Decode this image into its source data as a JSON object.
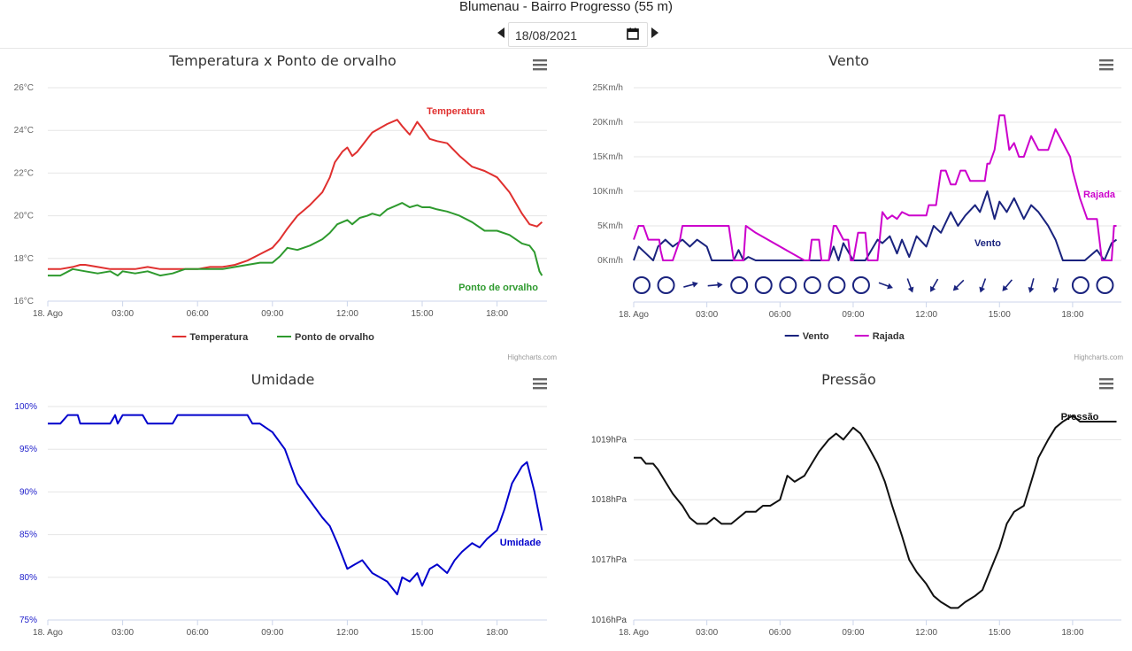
{
  "page": {
    "title": "Blumenau - Bairro Progresso (55 m)",
    "date": "18/08/2021",
    "credits": "Highcharts.com"
  },
  "chart_data": [
    {
      "id": "temperatura",
      "type": "line",
      "title": "Temperatura x Ponto de orvalho",
      "x_tick_labels": [
        "18. Ago",
        "03:00",
        "06:00",
        "09:00",
        "12:00",
        "15:00",
        "18:00"
      ],
      "x_range_hours": [
        0,
        20
      ],
      "y_tick_labels": [
        "16°C",
        "18°C",
        "20°C",
        "22°C",
        "24°C",
        "26°C"
      ],
      "ylim": [
        16,
        26
      ],
      "legend": "bottom-center",
      "series": [
        {
          "name": "Temperatura",
          "color": "#e0302f",
          "x": [
            0,
            0.5,
            1,
            1.3,
            1.5,
            2,
            2.5,
            3,
            3.5,
            4,
            4.5,
            5,
            5.5,
            6,
            6.5,
            7,
            7.5,
            8,
            8.5,
            9,
            9.3,
            9.6,
            10,
            10.5,
            11,
            11.3,
            11.5,
            11.8,
            12,
            12.2,
            12.4,
            12.6,
            12.8,
            13,
            13.3,
            13.6,
            14,
            14.2,
            14.5,
            14.8,
            15,
            15.3,
            15.6,
            16,
            16.5,
            17,
            17.5,
            18,
            18.5,
            19,
            19.3,
            19.6,
            19.8
          ],
          "y": [
            17.5,
            17.5,
            17.6,
            17.7,
            17.7,
            17.6,
            17.5,
            17.5,
            17.5,
            17.6,
            17.5,
            17.5,
            17.5,
            17.5,
            17.6,
            17.6,
            17.7,
            17.9,
            18.2,
            18.5,
            18.9,
            19.4,
            20,
            20.5,
            21.1,
            21.8,
            22.5,
            23,
            23.2,
            22.8,
            23,
            23.3,
            23.6,
            23.9,
            24.1,
            24.3,
            24.5,
            24.2,
            23.8,
            24.4,
            24.1,
            23.6,
            23.5,
            23.4,
            22.8,
            22.3,
            22.1,
            21.8,
            21.1,
            20.1,
            19.6,
            19.5,
            19.7
          ],
          "end_label": "Temperatura"
        },
        {
          "name": "Ponto de orvalho",
          "color": "#2e9a2e",
          "x": [
            0,
            0.5,
            1,
            1.5,
            2,
            2.5,
            2.8,
            3,
            3.5,
            4,
            4.5,
            5,
            5.5,
            6,
            6.5,
            7,
            7.5,
            8,
            8.5,
            9,
            9.3,
            9.6,
            10,
            10.5,
            11,
            11.3,
            11.6,
            12,
            12.2,
            12.5,
            12.8,
            13,
            13.3,
            13.6,
            14,
            14.2,
            14.5,
            14.8,
            15,
            15.3,
            15.6,
            16,
            16.5,
            17,
            17.5,
            18,
            18.5,
            19,
            19.3,
            19.5,
            19.7,
            19.8
          ],
          "y": [
            17.2,
            17.2,
            17.5,
            17.4,
            17.3,
            17.4,
            17.2,
            17.4,
            17.3,
            17.4,
            17.2,
            17.3,
            17.5,
            17.5,
            17.5,
            17.5,
            17.6,
            17.7,
            17.8,
            17.8,
            18.1,
            18.5,
            18.4,
            18.6,
            18.9,
            19.2,
            19.6,
            19.8,
            19.6,
            19.9,
            20,
            20.1,
            20,
            20.3,
            20.5,
            20.6,
            20.4,
            20.5,
            20.4,
            20.4,
            20.3,
            20.2,
            20,
            19.7,
            19.3,
            19.3,
            19.1,
            18.7,
            18.6,
            18.3,
            17.4,
            17.2
          ],
          "end_label": "Ponto de orvalho"
        }
      ]
    },
    {
      "id": "vento",
      "type": "line",
      "title": "Vento",
      "x_tick_labels": [
        "18. Ago",
        "03:00",
        "06:00",
        "09:00",
        "12:00",
        "15:00",
        "18:00"
      ],
      "x_range_hours": [
        0,
        20
      ],
      "y_tick_labels": [
        "0Km/h",
        "5Km/h",
        "10Km/h",
        "15Km/h",
        "20Km/h",
        "25Km/h"
      ],
      "ylim": [
        0,
        25
      ],
      "legend": "bottom-center",
      "series": [
        {
          "name": "Vento",
          "color": "#1a237e",
          "x": [
            0,
            0.2,
            0.5,
            0.8,
            1,
            1.3,
            1.6,
            2,
            2.3,
            2.6,
            3,
            3.2,
            3.5,
            4.1,
            4.3,
            4.5,
            4.7,
            5,
            8,
            8.2,
            8.4,
            8.6,
            9,
            9.2,
            9.5,
            10,
            10.2,
            10.5,
            10.8,
            11,
            11.3,
            11.6,
            12,
            12.3,
            12.6,
            13,
            13.3,
            13.6,
            14,
            14.2,
            14.5,
            14.8,
            15,
            15.3,
            15.6,
            16,
            16.3,
            16.6,
            17,
            17.3,
            17.6,
            18,
            18.5,
            19,
            19.3,
            19.6,
            19.8
          ],
          "y": [
            0,
            2,
            1,
            0,
            2,
            3,
            2,
            3,
            2,
            3,
            2,
            0,
            0,
            0,
            1.5,
            0,
            0.5,
            0,
            0,
            2,
            0,
            2.5,
            0,
            0,
            0,
            3,
            2.5,
            3.5,
            1,
            3,
            0.5,
            3.5,
            2,
            5,
            4,
            7,
            5,
            6.5,
            8,
            7,
            10,
            6,
            8.5,
            7,
            9,
            6,
            8,
            7,
            5,
            3,
            0,
            0,
            0,
            1.5,
            0,
            2.5,
            3
          ],
          "end_label": "Vento"
        },
        {
          "name": "Rajada",
          "color": "#cc00cc",
          "x": [
            0,
            0.2,
            0.4,
            0.6,
            1,
            1.05,
            1.1,
            1.2,
            1.6,
            1.9,
            2,
            2.5,
            3,
            3.2,
            3.5,
            3.9,
            4.1,
            4.2,
            4.5,
            4.6,
            5,
            7,
            7.2,
            7.3,
            7.6,
            7.7,
            8,
            8.2,
            8.3,
            8.6,
            8.8,
            8.9,
            9,
            9.2,
            9.5,
            9.6,
            10,
            10.2,
            10.4,
            10.6,
            10.8,
            11,
            11.3,
            11.6,
            12,
            12.1,
            12.4,
            12.6,
            12.8,
            13,
            13.2,
            13.4,
            13.6,
            13.8,
            14,
            14.2,
            14.4,
            14.5,
            14.6,
            14.8,
            15,
            15.2,
            15.4,
            15.6,
            15.8,
            16,
            16.3,
            16.6,
            17,
            17.3,
            17.6,
            17.9,
            18,
            18.3,
            18.6,
            19,
            19.2,
            19.4,
            19.6,
            19.7,
            19.8
          ],
          "y": [
            3,
            5,
            5,
            3,
            3,
            3,
            1.5,
            0,
            0,
            3,
            5,
            5,
            5,
            5,
            5,
            5,
            0,
            0,
            0,
            5,
            4,
            0,
            0,
            3,
            3,
            0,
            0,
            5,
            5,
            3,
            3,
            0,
            0,
            4,
            4,
            0,
            0,
            7,
            6,
            6.5,
            6,
            7,
            6.5,
            6.5,
            6.5,
            8,
            8,
            13,
            13,
            11,
            11,
            13,
            13,
            11.5,
            11.5,
            11.5,
            11.5,
            14,
            14,
            16,
            21,
            21,
            16,
            17,
            15,
            15,
            18,
            16,
            16,
            19,
            17,
            15,
            13,
            9,
            6,
            6,
            0,
            0,
            0,
            5,
            5
          ],
          "end_label": "Rajada"
        }
      ],
      "wind_direction": {
        "x": [
          0,
          1,
          2,
          3,
          4,
          5,
          6,
          7,
          8,
          9,
          10,
          11,
          12,
          13,
          14,
          15,
          16,
          17,
          18,
          19
        ],
        "symbols": [
          "calm",
          "calm",
          "arrow",
          "arrow",
          "calm",
          "calm",
          "calm",
          "calm",
          "calm",
          "calm",
          "arrow",
          "arrow",
          "arrow",
          "arrow",
          "arrow",
          "arrow",
          "arrow",
          "arrow",
          "calm",
          "calm"
        ],
        "degrees": [
          null,
          null,
          255,
          265,
          null,
          null,
          null,
          null,
          null,
          null,
          290,
          340,
          30,
          45,
          20,
          40,
          15,
          15,
          null,
          null
        ]
      }
    },
    {
      "id": "umidade",
      "type": "line",
      "title": "Umidade",
      "x_tick_labels": [
        "18. Ago",
        "03:00",
        "06:00",
        "09:00",
        "12:00",
        "15:00",
        "18:00"
      ],
      "x_range_hours": [
        0,
        20
      ],
      "y_tick_labels": [
        "75%",
        "80%",
        "85%",
        "90%",
        "95%",
        "100%"
      ],
      "ylim": [
        75,
        100
      ],
      "legend": "none",
      "series": [
        {
          "name": "Umidade",
          "color": "#0000cc",
          "x": [
            0,
            0.5,
            0.8,
            1,
            1.2,
            1.3,
            2,
            2.5,
            2.7,
            2.8,
            3,
            3.5,
            3.8,
            4,
            5,
            5.2,
            6,
            7,
            8,
            8.2,
            8.5,
            9,
            9.5,
            10,
            10.5,
            11,
            11.3,
            11.6,
            12,
            12.3,
            12.6,
            13,
            13.3,
            13.6,
            14,
            14.2,
            14.5,
            14.8,
            15,
            15.3,
            15.6,
            16,
            16.3,
            16.6,
            17,
            17.3,
            17.6,
            18,
            18.3,
            18.6,
            19,
            19.2,
            19.5,
            19.8
          ],
          "y": [
            98,
            98,
            99,
            99,
            99,
            98,
            98,
            98,
            99,
            98,
            99,
            99,
            99,
            98,
            98,
            99,
            99,
            99,
            99,
            98,
            98,
            97,
            95,
            91,
            89,
            87,
            86,
            84,
            81,
            81.5,
            82,
            80.5,
            80,
            79.5,
            78,
            80,
            79.5,
            80.5,
            79,
            81,
            81.5,
            80.5,
            82,
            83,
            84,
            83.5,
            84.5,
            85.5,
            88,
            91,
            93,
            93.5,
            90,
            85.5
          ],
          "end_label": "Umidade"
        }
      ]
    },
    {
      "id": "pressao",
      "type": "line",
      "title": "Pressão",
      "x_tick_labels": [
        "18. Ago",
        "03:00",
        "06:00",
        "09:00",
        "12:00",
        "15:00",
        "18:00"
      ],
      "x_range_hours": [
        0,
        20
      ],
      "y_tick_labels": [
        "1016hPa",
        "1017hPa",
        "1018hPa",
        "1019hPa"
      ],
      "ylim": [
        1016,
        1019.55
      ],
      "legend": "none",
      "series": [
        {
          "name": "Pressão",
          "color": "#111111",
          "x": [
            0,
            0.3,
            0.5,
            0.8,
            1,
            1.3,
            1.6,
            2,
            2.3,
            2.6,
            3,
            3.3,
            3.6,
            4,
            4.3,
            4.6,
            5,
            5.3,
            5.6,
            6,
            6.3,
            6.6,
            7,
            7.3,
            7.6,
            8,
            8.3,
            8.6,
            9,
            9.3,
            9.6,
            10,
            10.3,
            10.6,
            11,
            11.3,
            11.6,
            12,
            12.3,
            12.6,
            13,
            13.3,
            13.6,
            14,
            14.3,
            14.6,
            15,
            15.3,
            15.6,
            16,
            16.3,
            16.6,
            17,
            17.3,
            17.6,
            18,
            18.3,
            18.6,
            19,
            19.3,
            19.6,
            19.8
          ],
          "y": [
            1018.7,
            1018.7,
            1018.6,
            1018.6,
            1018.5,
            1018.3,
            1018.1,
            1017.9,
            1017.7,
            1017.6,
            1017.6,
            1017.7,
            1017.6,
            1017.6,
            1017.7,
            1017.8,
            1017.8,
            1017.9,
            1017.9,
            1018.0,
            1018.4,
            1018.3,
            1018.4,
            1018.6,
            1018.8,
            1019.0,
            1019.1,
            1019.0,
            1019.2,
            1019.1,
            1018.9,
            1018.6,
            1018.3,
            1017.9,
            1017.4,
            1017.0,
            1016.8,
            1016.6,
            1016.4,
            1016.3,
            1016.2,
            1016.2,
            1016.3,
            1016.4,
            1016.5,
            1016.8,
            1017.2,
            1017.6,
            1017.8,
            1017.9,
            1018.3,
            1018.7,
            1019.0,
            1019.2,
            1019.3,
            1019.4,
            1019.3,
            1019.3,
            1019.3,
            1019.3,
            1019.3,
            1019.3
          ],
          "end_label": "Pressão"
        }
      ]
    }
  ]
}
